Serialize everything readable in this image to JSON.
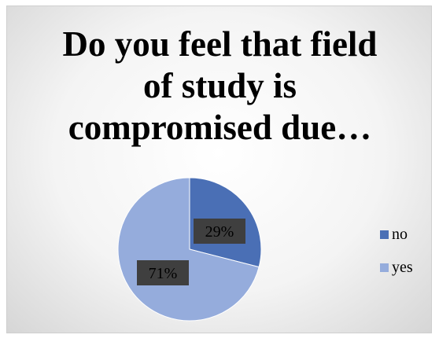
{
  "chart_data": {
    "type": "pie",
    "title": "Do you feel that field of study is compromised due…",
    "title_lines": [
      "Do you feel that field",
      "of study is",
      "compromised due…"
    ],
    "categories": [
      "no",
      "yes"
    ],
    "values": [
      29,
      71
    ],
    "data_labels": [
      "29%",
      "71%"
    ],
    "colors": [
      "#4a6fb5",
      "#95acdc"
    ],
    "legend_position": "right"
  }
}
